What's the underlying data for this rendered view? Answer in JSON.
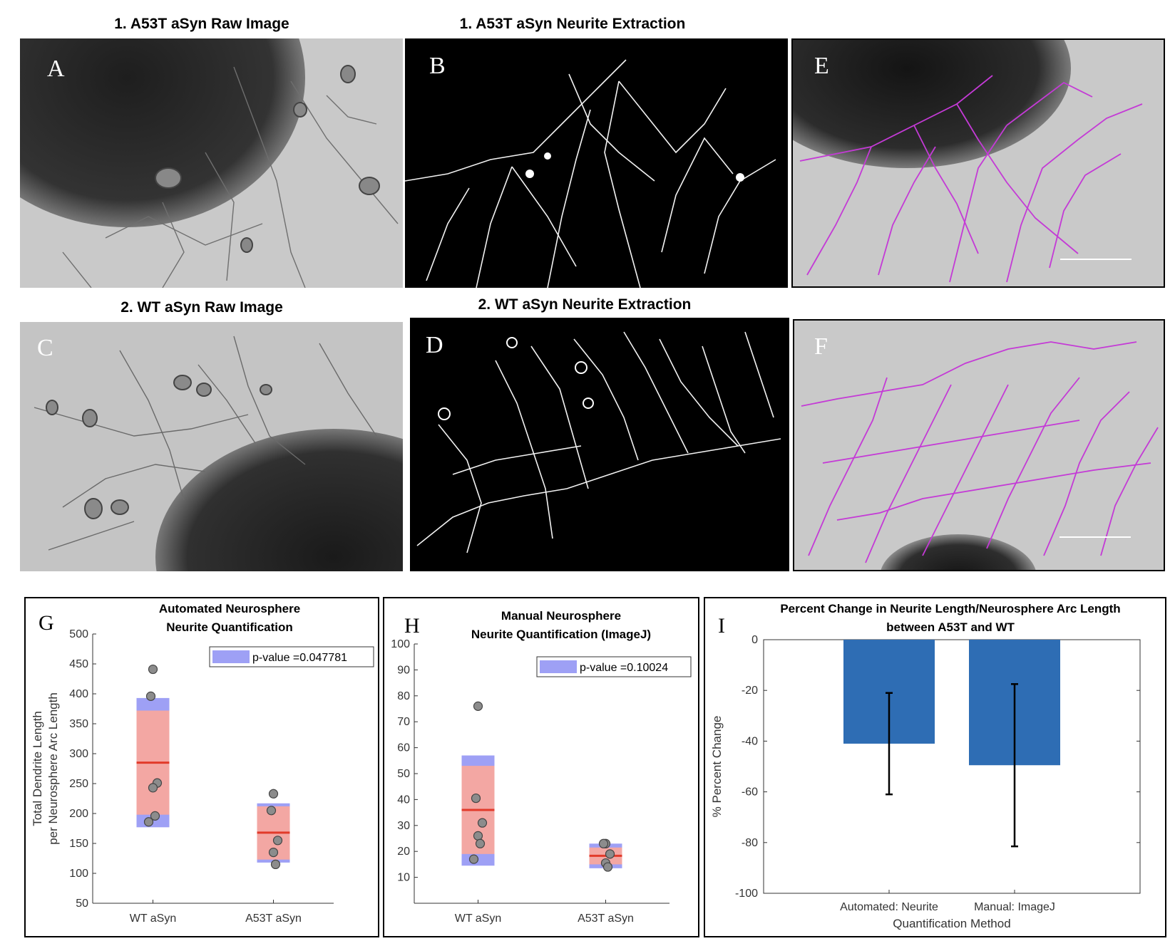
{
  "panels": {
    "A": {
      "letter": "A",
      "title": "1. A53T aSyn Raw Image"
    },
    "B": {
      "letter": "B",
      "title": "1. A53T aSyn Neurite Extraction"
    },
    "C": {
      "letter": "C",
      "title": "2. WT aSyn Raw Image"
    },
    "D": {
      "letter": "D",
      "title": "2. WT aSyn Neurite Extraction"
    },
    "E": {
      "letter": "E"
    },
    "F": {
      "letter": "F"
    }
  },
  "chart_data": [
    {
      "id": "G",
      "letter": "G",
      "type": "box",
      "title_lines": [
        "Automated Neurosphere",
        "Neurite Quantification"
      ],
      "ylabel_lines": [
        "Total Dendrite Length",
        "per Neurosphere Arc Length"
      ],
      "categories": [
        "WT aSyn",
        "A53T aSyn"
      ],
      "ylim": [
        50,
        500
      ],
      "yticks": [
        50,
        100,
        150,
        200,
        250,
        300,
        350,
        400,
        450,
        500
      ],
      "legend": "p-value =0.047781",
      "legend_position": "top-right",
      "groups": [
        {
          "category": "WT aSyn",
          "mean": 285,
          "ci": [
            198,
            372
          ],
          "sd": [
            177,
            393
          ],
          "points": [
            441,
            396,
            251,
            243,
            196,
            186
          ]
        },
        {
          "category": "A53T aSyn",
          "mean": 168,
          "ci": [
            123,
            212
          ],
          "sd": [
            118,
            217
          ],
          "points": [
            233,
            205,
            155,
            135,
            115
          ]
        }
      ]
    },
    {
      "id": "H",
      "letter": "H",
      "type": "box",
      "title_lines": [
        "Manual Neurosphere",
        "Neurite Quantification (ImageJ)"
      ],
      "ylabel_lines": [],
      "categories": [
        "WT aSyn",
        "A53T aSyn"
      ],
      "ylim": [
        0,
        100
      ],
      "yticks": [
        10,
        20,
        30,
        40,
        50,
        60,
        70,
        80,
        90,
        100
      ],
      "legend": "p-value =0.10024",
      "legend_position": "top-right",
      "groups": [
        {
          "category": "WT aSyn",
          "mean": 36,
          "ci": [
            19,
            53
          ],
          "sd": [
            14.5,
            57
          ],
          "points": [
            76,
            40.5,
            31,
            26,
            23,
            17
          ]
        },
        {
          "category": "A53T aSyn",
          "mean": 18.3,
          "ci": [
            15,
            21.5
          ],
          "sd": [
            13.5,
            23
          ],
          "points": [
            23,
            23,
            19,
            15.5,
            14
          ]
        }
      ]
    },
    {
      "id": "I",
      "letter": "I",
      "type": "bar",
      "title_lines": [
        "Percent Change in Neurite Length/Neurosphere Arc Length",
        "between A53T and WT"
      ],
      "ylabel": "% Percent Change",
      "xlabel": "Quantification Method",
      "categories": [
        "Automated: Neurite",
        "Manual: ImageJ"
      ],
      "values": [
        -41,
        -49.5
      ],
      "errors": [
        20,
        32
      ],
      "ylim": [
        -100,
        0
      ],
      "yticks": [
        0,
        -20,
        -40,
        -60,
        -80,
        -100
      ],
      "bar_color": "#2e6db4"
    }
  ]
}
